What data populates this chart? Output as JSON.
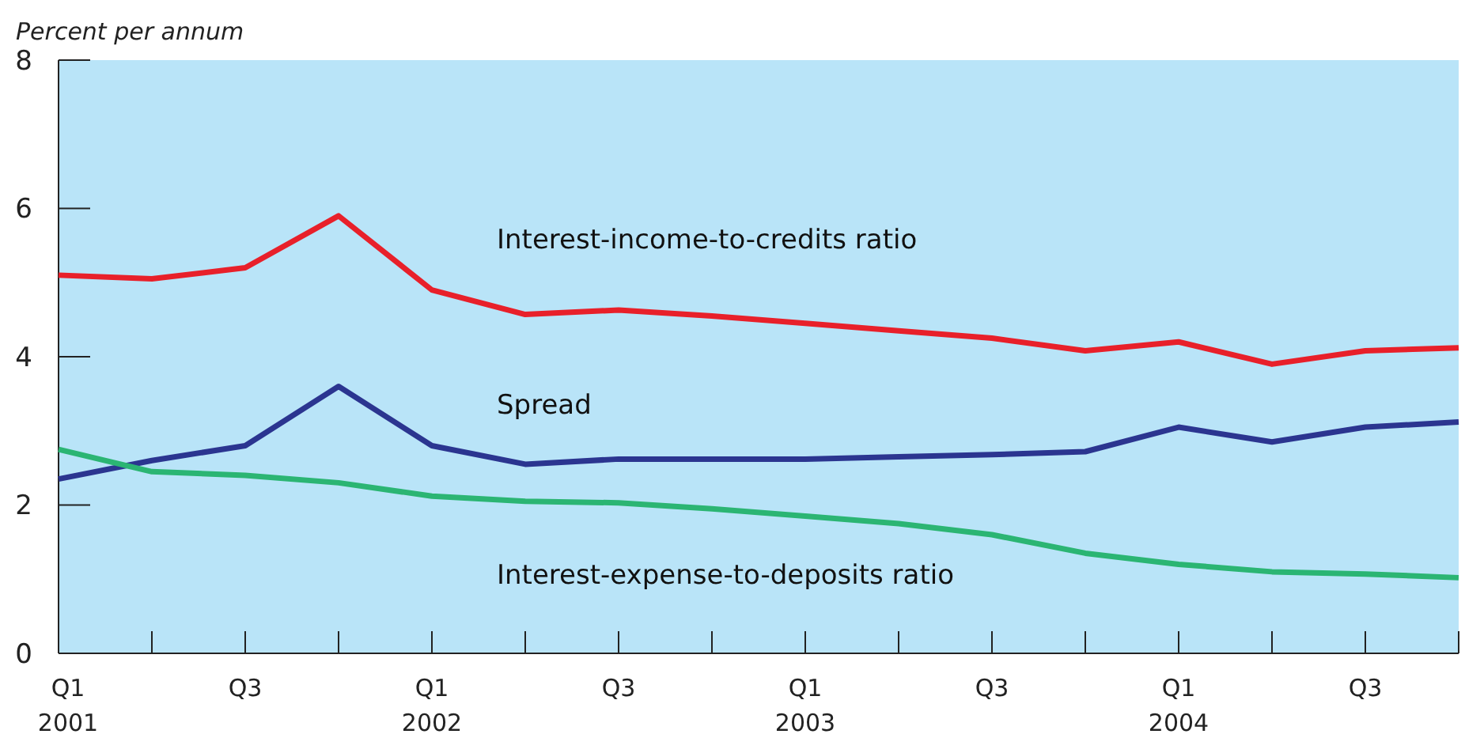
{
  "chart_data": {
    "type": "line",
    "ylabel": "Percent per annum",
    "categories": [
      "Q1 2001",
      null,
      "Q3",
      null,
      "Q1 2002",
      null,
      "Q3",
      null,
      "Q1 2003",
      null,
      "Q3",
      null,
      "Q1 2004",
      null,
      "Q3",
      null
    ],
    "ylim": [
      0,
      8
    ],
    "yticks": [
      0,
      2,
      4,
      6,
      8
    ],
    "grid": false,
    "legend": false,
    "marker": "none",
    "line_style": "solid",
    "series": [
      {
        "name": "Interest-income-to-credits ratio",
        "color": "#e8202a",
        "values": [
          5.1,
          5.05,
          5.2,
          5.9,
          4.9,
          4.57,
          4.63,
          4.55,
          4.45,
          4.35,
          4.25,
          4.08,
          4.2,
          3.9,
          4.08,
          4.12
        ]
      },
      {
        "name": "Spread",
        "color": "#2b3590",
        "values": [
          2.35,
          2.6,
          2.8,
          3.6,
          2.8,
          2.55,
          2.62,
          2.62,
          2.62,
          2.65,
          2.68,
          2.72,
          3.05,
          2.85,
          3.05,
          3.12
        ]
      },
      {
        "name": "Interest-expense-to-deposits ratio",
        "color": "#2bb573",
        "values": [
          2.75,
          2.45,
          2.4,
          2.3,
          2.12,
          2.05,
          2.03,
          1.95,
          1.85,
          1.75,
          1.6,
          1.35,
          1.2,
          1.1,
          1.07,
          1.02
        ]
      }
    ]
  }
}
